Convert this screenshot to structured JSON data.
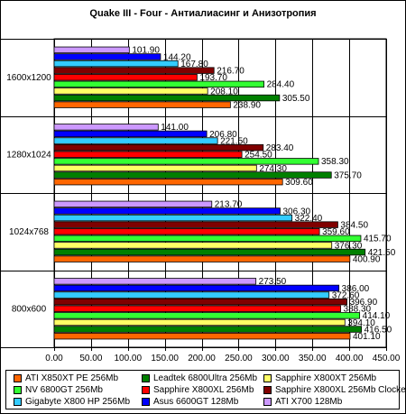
{
  "chart_data": {
    "type": "bar",
    "orientation": "horizontal",
    "title": "Quake III - Four - Антиалиасинг и Анизотропия",
    "categories": [
      "1600x1200",
      "1280x1024",
      "1024x768",
      "800x600"
    ],
    "xlim": [
      0,
      450
    ],
    "x_ticks": [
      "0.00",
      "50.00",
      "100.00",
      "150.00",
      "200.00",
      "250.00",
      "300.00",
      "350.00",
      "400.00",
      "450.00"
    ],
    "grid": true,
    "legend_position": "bottom",
    "series": [
      {
        "name": "ATI X850XT PE 256Mb",
        "color": "#ff6600",
        "values": [
          238.9,
          309.6,
          400.9,
          401.1
        ],
        "labels": [
          "238.90",
          "309.60",
          "400.90",
          "401.10"
        ]
      },
      {
        "name": "Leadtek 6800Ultra 256Mb",
        "color": "#008000",
        "values": [
          305.5,
          375.7,
          421.5,
          416.5
        ],
        "labels": [
          "305.50",
          "375.70",
          "421.50",
          "416.50"
        ]
      },
      {
        "name": "Sapphire X800XT 256Mb",
        "color": "#ffff66",
        "values": [
          208.1,
          274.3,
          376.3,
          394.1
        ],
        "labels": [
          "208.10",
          "274.30",
          "376.30",
          "394.10"
        ]
      },
      {
        "name": "NV 6800GT 256Mb",
        "color": "#33ff33",
        "values": [
          284.4,
          358.3,
          415.7,
          414.1
        ],
        "labels": [
          "284.40",
          "358.30",
          "415.70",
          "414.10"
        ]
      },
      {
        "name": "Sapphire X800XL 256Mb",
        "color": "#ff0000",
        "values": [
          193.7,
          254.5,
          359.6,
          388.3
        ],
        "labels": [
          "193.70",
          "254.50",
          "359.60",
          "388.30"
        ]
      },
      {
        "name": "Sapphire X800XL 256Mb Clocked",
        "color": "#800000",
        "values": [
          216.7,
          283.4,
          384.5,
          396.9
        ],
        "labels": [
          "216.70",
          "283.40",
          "384.50",
          "396.90"
        ]
      },
      {
        "name": "Gigabyte X800 HP 256Mb",
        "color": "#33ccff",
        "values": [
          167.8,
          221.5,
          322.4,
          372.6
        ],
        "labels": [
          "167.80",
          "221.50",
          "322.40",
          "372.60"
        ]
      },
      {
        "name": "Asus 6600GT 128Mb",
        "color": "#0000ff",
        "values": [
          144.2,
          206.8,
          306.3,
          386.0
        ],
        "labels": [
          "144.20",
          "206.80",
          "306.30",
          "386.00"
        ]
      },
      {
        "name": "ATI X700 128Mb",
        "color": "#cc99ff",
        "values": [
          101.9,
          141.0,
          213.7,
          273.5
        ],
        "labels": [
          "101.90",
          "141.00",
          "213.70",
          "273.50"
        ]
      }
    ]
  }
}
